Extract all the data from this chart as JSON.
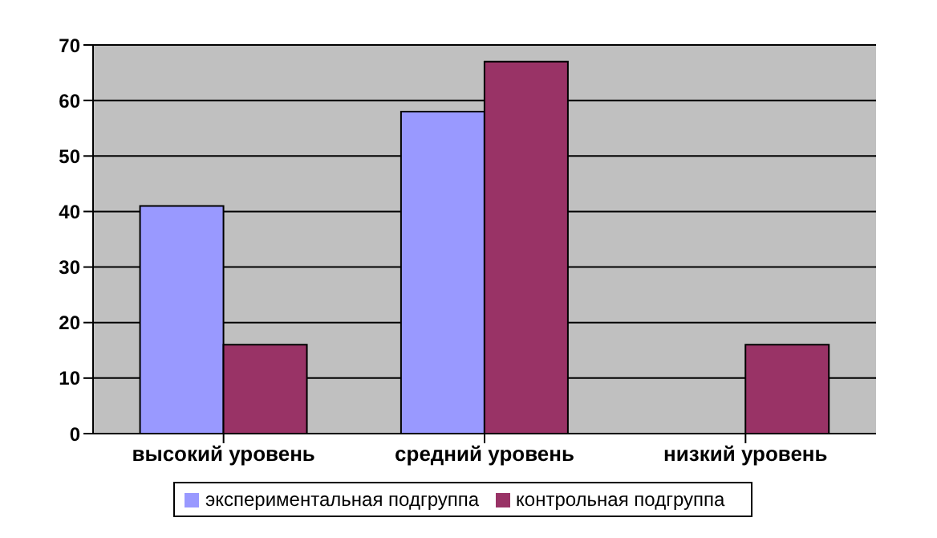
{
  "chart_data": {
    "type": "bar",
    "categories": [
      "высокий уровень",
      "средний уровень",
      "низкий уровень"
    ],
    "series": [
      {
        "name": "экспериментальная подгруппа",
        "color": "#9999ff",
        "values": [
          41,
          58,
          0
        ]
      },
      {
        "name": "контрольная подгруппа",
        "color": "#993366",
        "values": [
          16,
          67,
          16
        ]
      }
    ],
    "ylim": [
      0,
      70
    ],
    "yticks": [
      0,
      10,
      20,
      30,
      40,
      50,
      60,
      70
    ],
    "grid": "y",
    "legend": "bottom"
  }
}
